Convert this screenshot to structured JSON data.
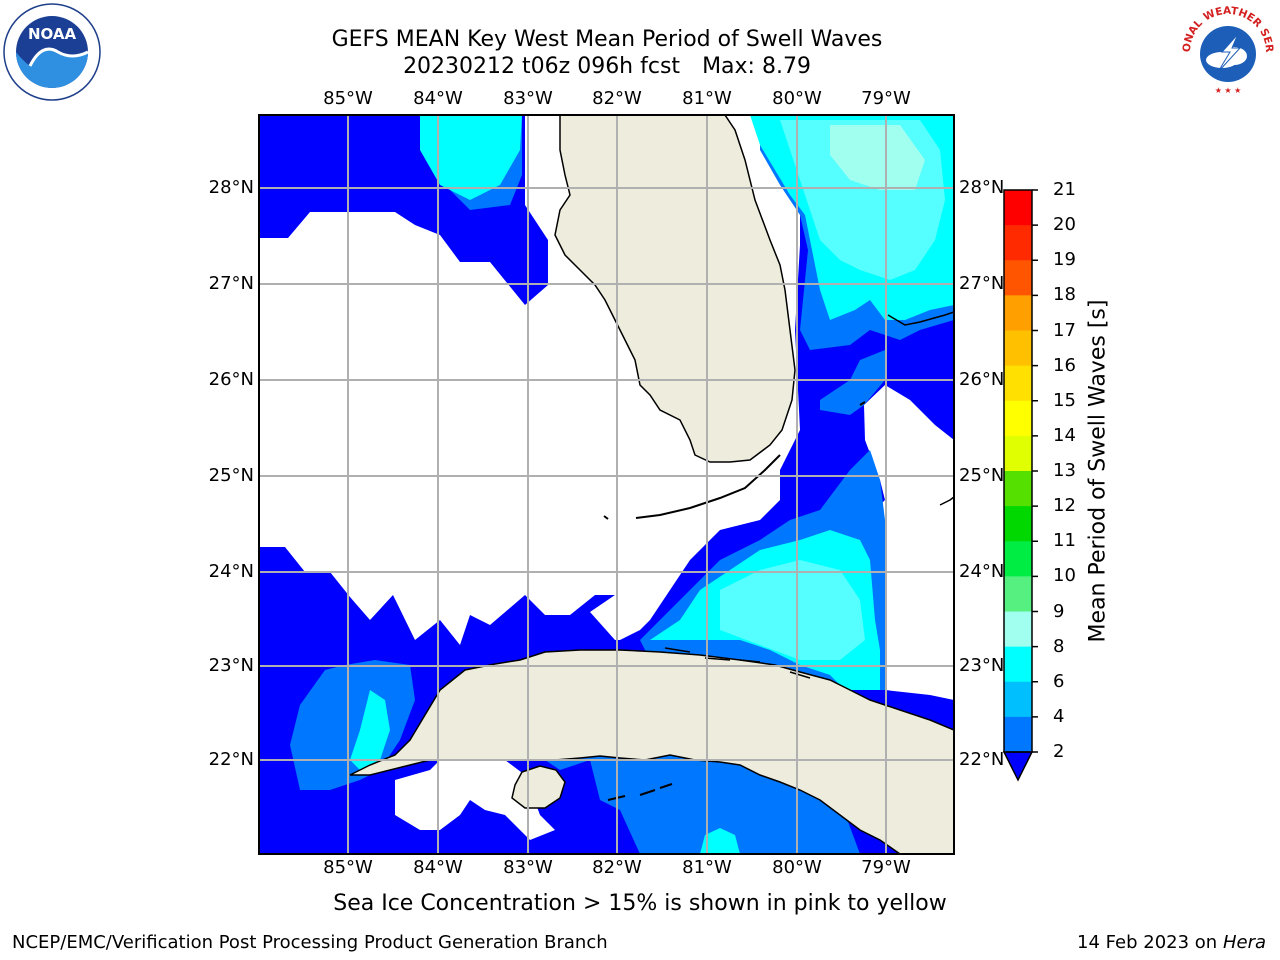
{
  "title": {
    "line1": "GEFS MEAN Key West Mean Period of Swell Waves",
    "run": "20230212 t06z 096h fcst",
    "max": "Max: 8.79"
  },
  "axes": {
    "lon_labels": [
      "85°W",
      "84°W",
      "83°W",
      "82°W",
      "81°W",
      "80°W",
      "79°W"
    ],
    "lat_labels": [
      "28°N",
      "27°N",
      "26°N",
      "25°N",
      "24°N",
      "23°N",
      "22°N"
    ]
  },
  "colorbar": {
    "title": "Mean Period of Swell Waves [s]",
    "labels": [
      "21",
      "20",
      "19",
      "18",
      "17",
      "16",
      "15",
      "14",
      "13",
      "12",
      "11",
      "10",
      "9",
      "8",
      "6",
      "4",
      "2"
    ],
    "colors": [
      "#ff0000",
      "#ff2a00",
      "#ff5500",
      "#ff7f00",
      "#ffa000",
      "#ffc000",
      "#ffe000",
      "#ffff00",
      "#e0ff00",
      "#aaf000",
      "#55e000",
      "#00d800",
      "#00ee44",
      "#55f080",
      "#a0ffee",
      "#55ffff",
      "#00ffff",
      "#00bfff",
      "#0077ff",
      "#0000ff"
    ]
  },
  "map_colors": {
    "land": "#eeecdc",
    "ocean_no_data": "#ffffff",
    "swell_2_4": "#0000ff",
    "swell_4_6": "#0077ff",
    "swell_6_8": "#00ffff",
    "swell_8_9": "#55ffff",
    "swell_9_10": "#a0ffee"
  },
  "ice_note": "Sea Ice Concentration > 15% is shown in pink to yellow",
  "footer": {
    "left": "NCEP/EMC/Verification Post Processing Product Generation Branch",
    "date": "14 Feb 2023 on",
    "host": "Hera"
  },
  "logos": {
    "noaa": "NOAA",
    "nws": "NATIONAL WEATHER SERVICE"
  }
}
